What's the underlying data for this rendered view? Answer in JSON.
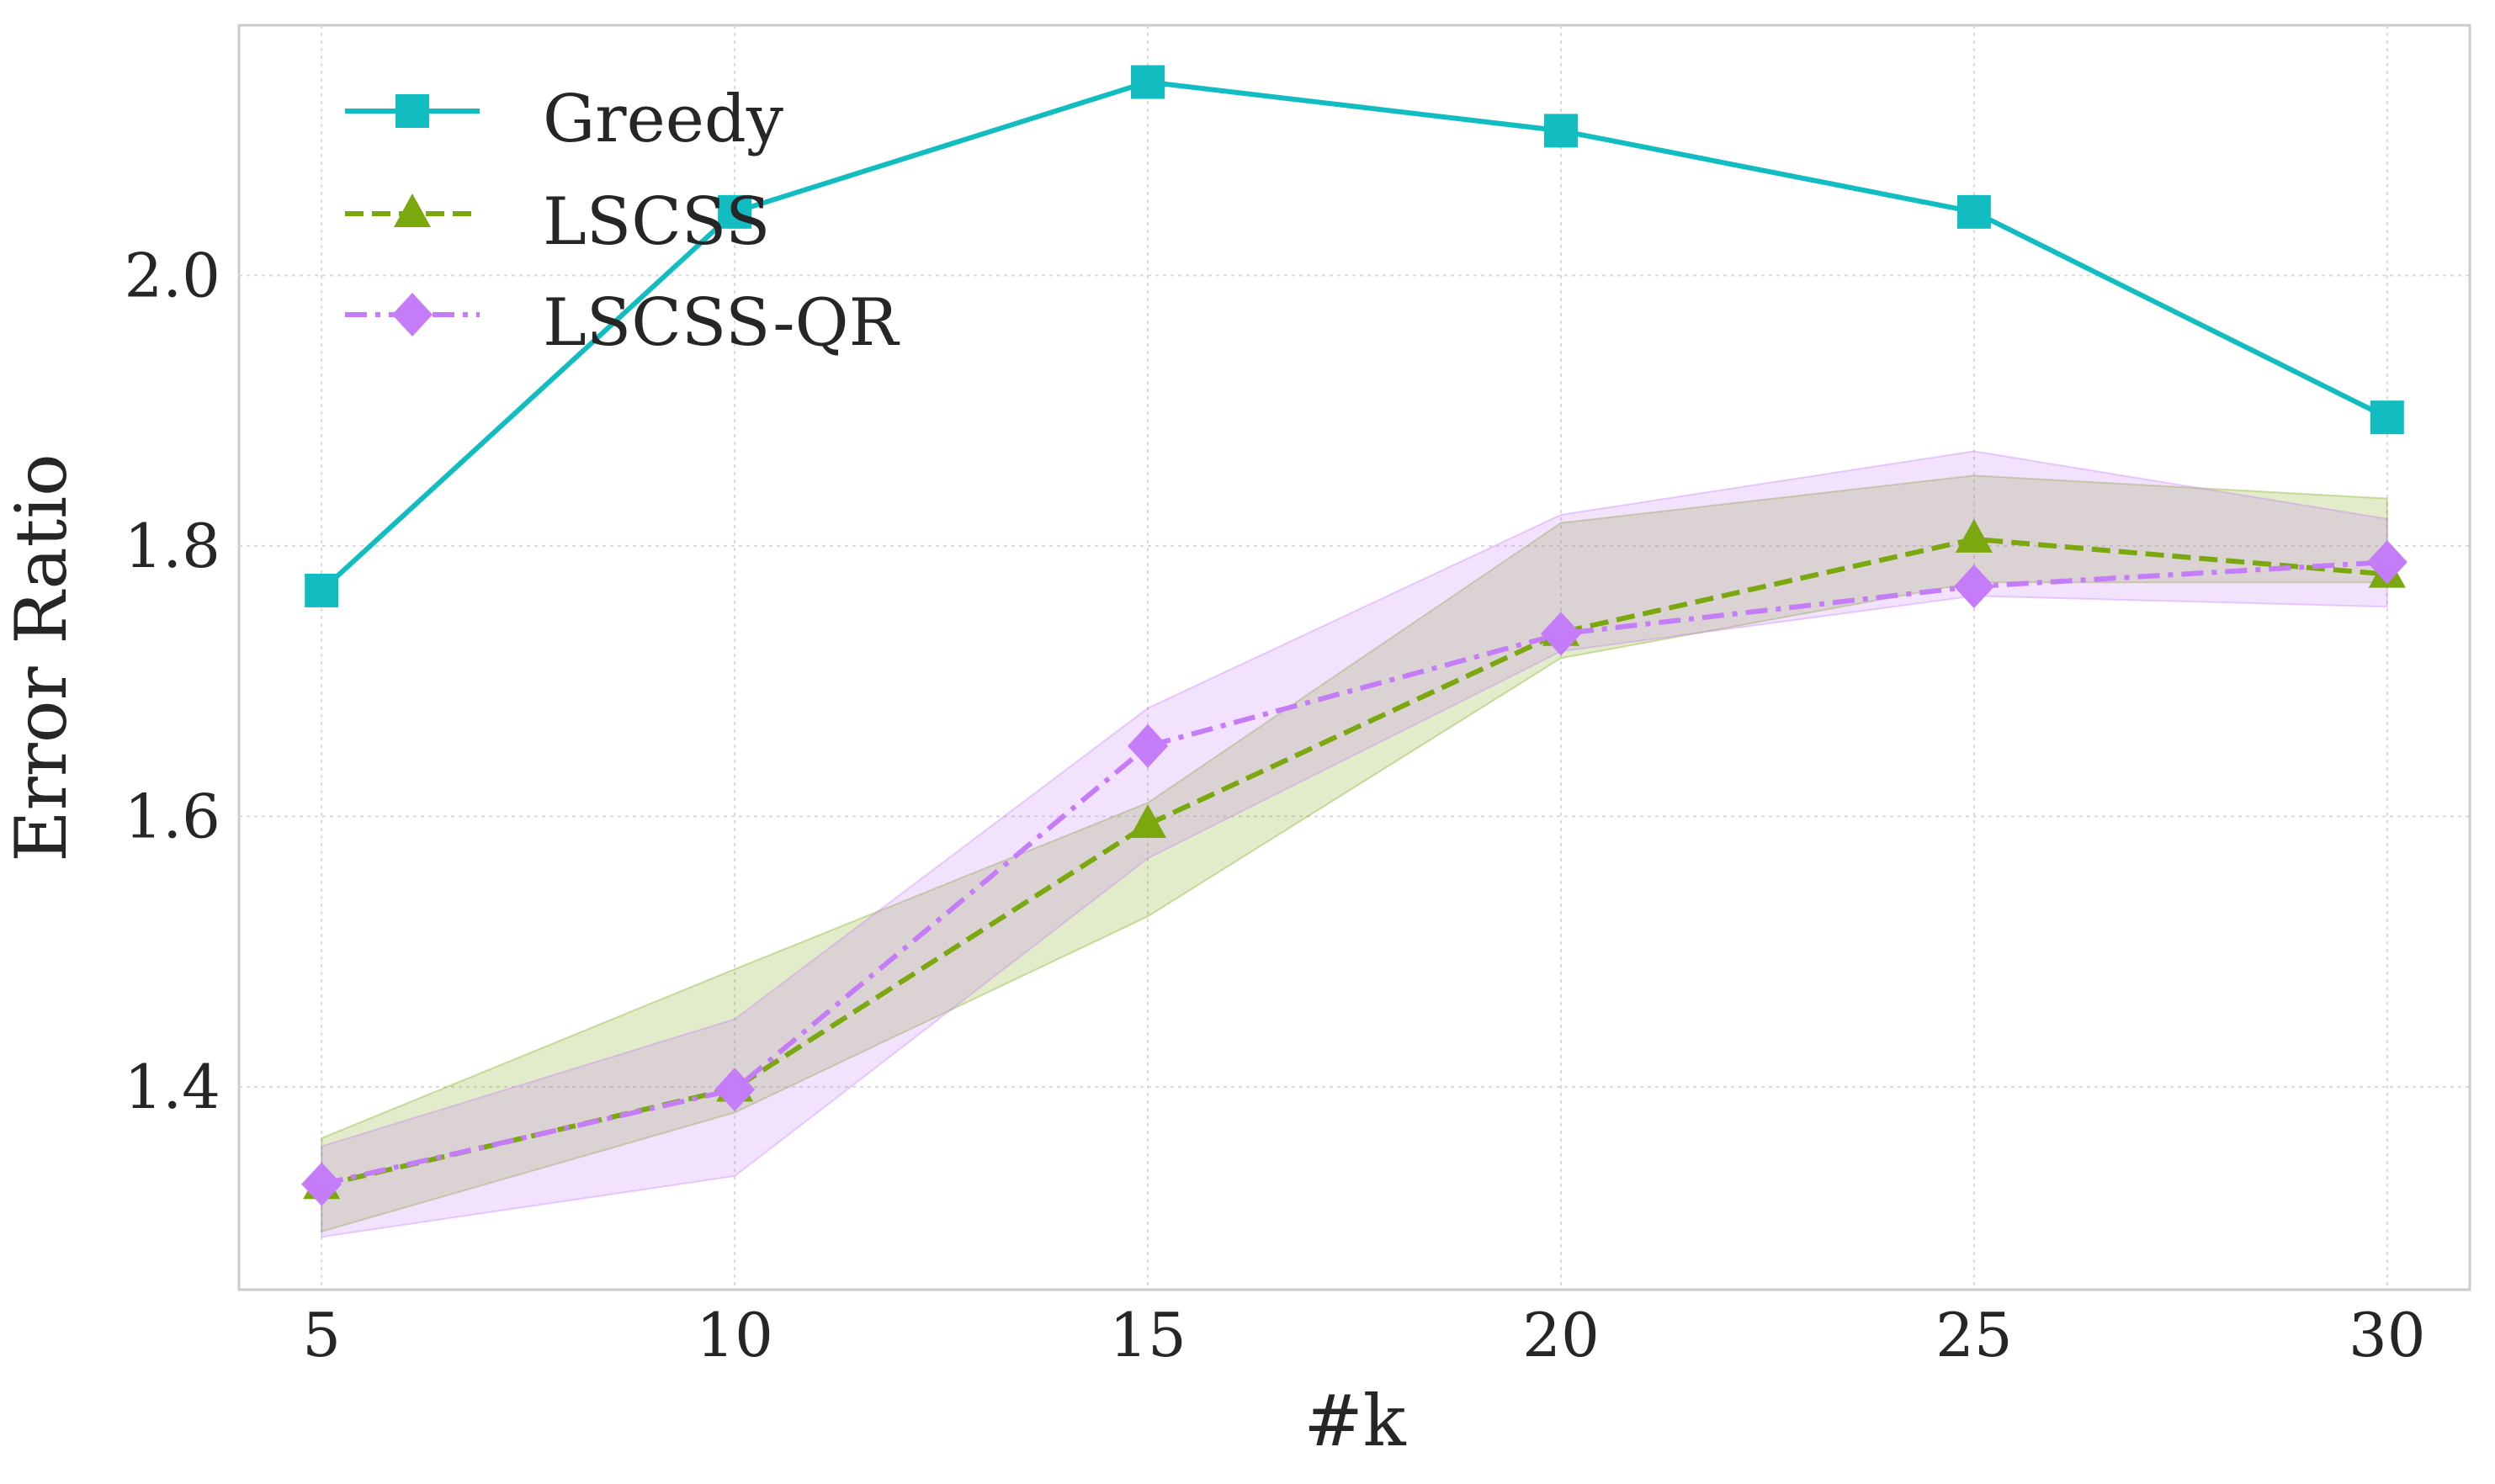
{
  "chart_data": {
    "type": "line",
    "xlabel": "#k",
    "ylabel": "Error Ratio",
    "x": [
      5,
      10,
      15,
      20,
      25,
      30
    ],
    "xticks": [
      "5",
      "10",
      "15",
      "20",
      "25",
      "30"
    ],
    "yticks": [
      "1.4",
      "1.6",
      "1.8",
      "2.0"
    ],
    "ytick_values": [
      1.4,
      1.6,
      1.8,
      2.0
    ],
    "xlim": [
      4.0,
      31.0
    ],
    "ylim": [
      1.25,
      2.185
    ],
    "grid": true,
    "legend_position": "top-left",
    "series": [
      {
        "name": "Greedy",
        "color": "#12BDC2",
        "marker": "square",
        "linestyle": "solid",
        "values": [
          1.767,
          2.047,
          2.143,
          2.107,
          2.047,
          1.895
        ]
      },
      {
        "name": "LSCSS",
        "color": "#7AA80E",
        "marker": "triangle",
        "linestyle": "dashed",
        "values": [
          1.327,
          1.399,
          1.594,
          1.736,
          1.805,
          1.779
        ],
        "band_lower": [
          1.293,
          1.381,
          1.526,
          1.717,
          1.773,
          1.773
        ],
        "band_upper": [
          1.362,
          1.487,
          1.61,
          1.817,
          1.852,
          1.835
        ]
      },
      {
        "name": "LSCSS-QR",
        "color": "#C57CF8",
        "marker": "diamond",
        "linestyle": "dashdot",
        "values": [
          1.328,
          1.398,
          1.652,
          1.735,
          1.77,
          1.788
        ],
        "band_lower": [
          1.289,
          1.334,
          1.569,
          1.722,
          1.763,
          1.755
        ],
        "band_upper": [
          1.356,
          1.45,
          1.68,
          1.823,
          1.87,
          1.82
        ]
      }
    ]
  }
}
